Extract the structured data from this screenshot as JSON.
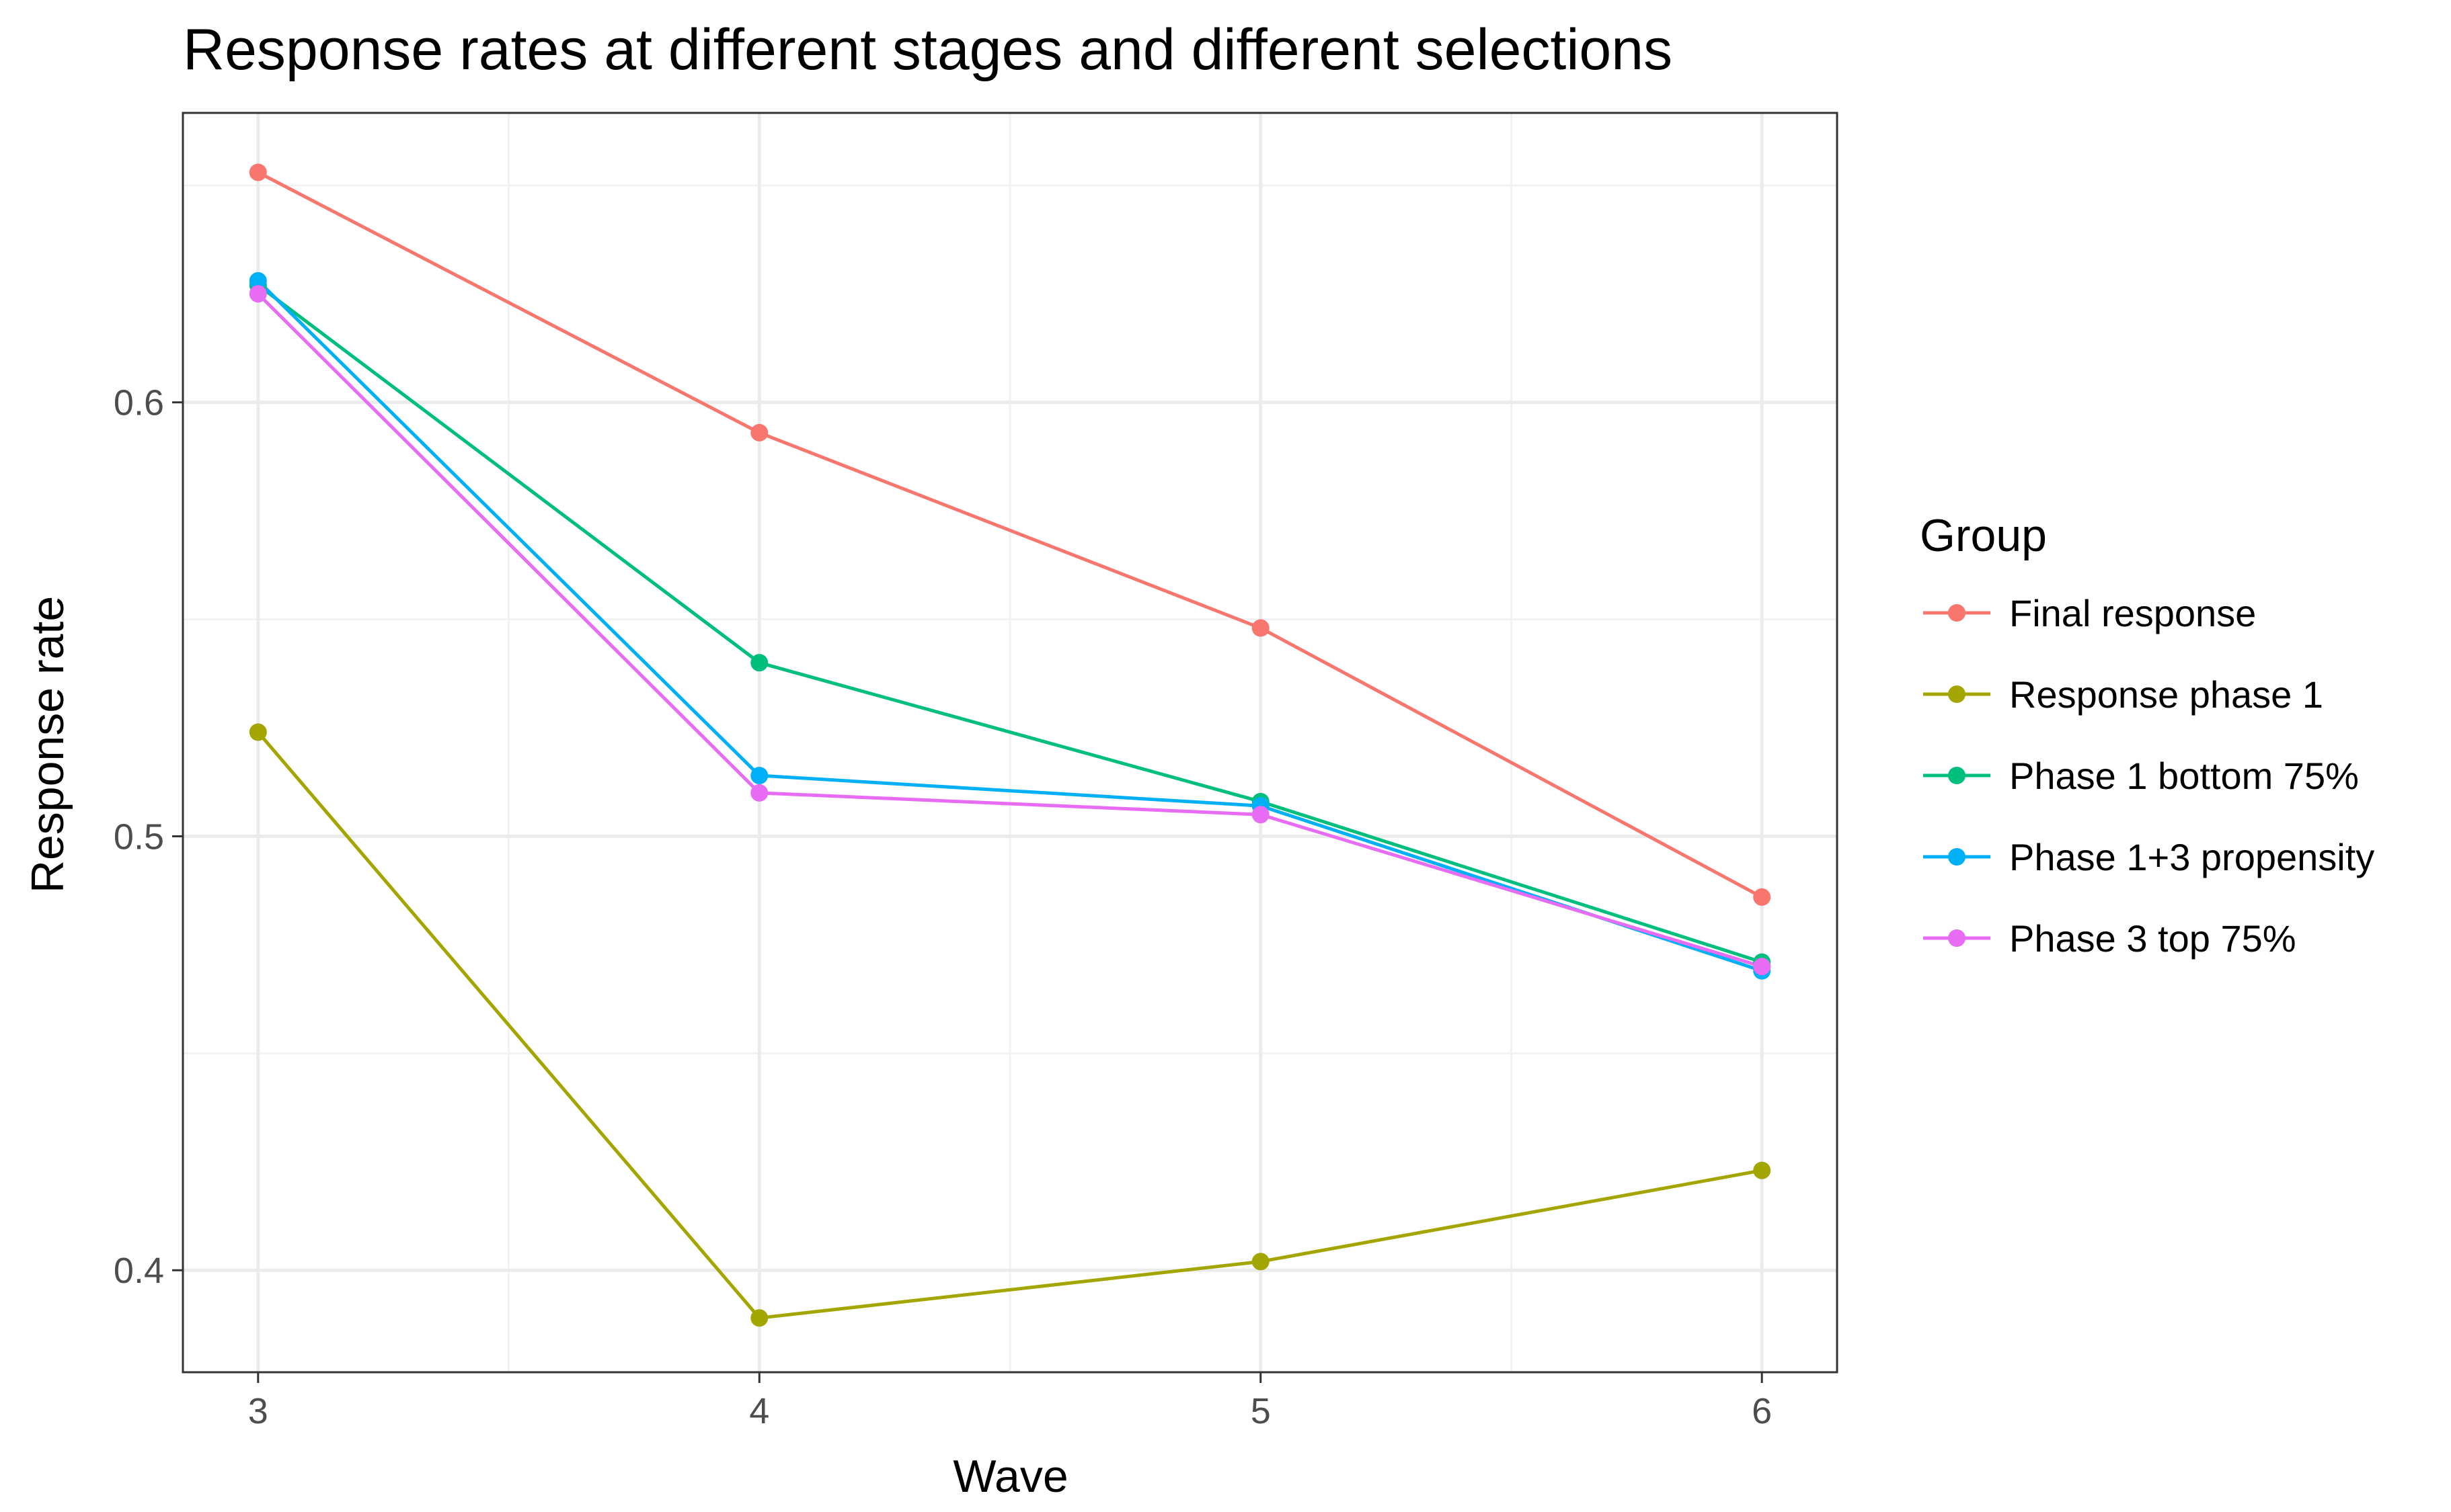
{
  "chart_data": {
    "type": "line",
    "title": "Response rates at different stages and different selections",
    "xlabel": "Wave",
    "ylabel": "Response rate",
    "x": [
      3,
      4,
      5,
      6
    ],
    "x_ticks": [
      "3",
      "4",
      "5",
      "6"
    ],
    "y_ticks": [
      0.4,
      0.5,
      0.6
    ],
    "y_tick_labels": [
      "0.4",
      "0.5",
      "0.6"
    ],
    "xlim": [
      2.85,
      6.15
    ],
    "ylim": [
      0.3765,
      0.6667
    ],
    "grid": true,
    "legend": {
      "title": "Group",
      "placement": "right"
    },
    "series": [
      {
        "name": "Final response",
        "color": "#F8766D",
        "values": [
          0.653,
          0.593,
          0.548,
          0.486
        ]
      },
      {
        "name": "Response phase 1",
        "color": "#A3A500",
        "values": [
          0.524,
          0.389,
          0.402,
          0.423
        ]
      },
      {
        "name": "Phase 1 bottom 75%",
        "color": "#00BF7D",
        "values": [
          0.627,
          0.54,
          0.508,
          0.471
        ]
      },
      {
        "name": "Phase 1+3 propensity",
        "color": "#00B0F6",
        "values": [
          0.628,
          0.514,
          0.507,
          0.469
        ]
      },
      {
        "name": "Phase 3 top 75%",
        "color": "#E76BF3",
        "values": [
          0.625,
          0.51,
          0.505,
          0.47
        ]
      }
    ]
  }
}
